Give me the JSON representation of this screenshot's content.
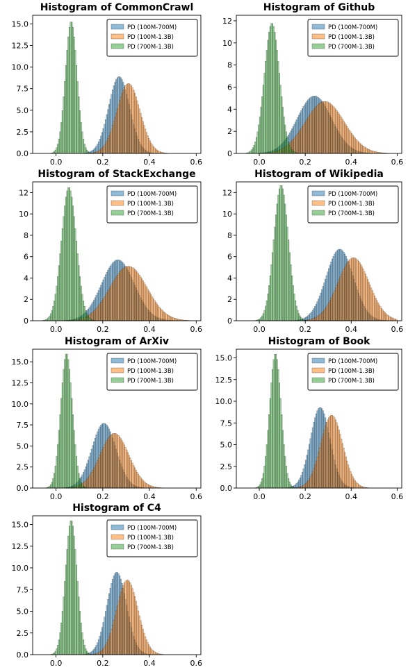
{
  "chart_data": [
    {
      "type": "histogram",
      "title": "Histogram of CommonCrawl",
      "xlim": [
        -0.1,
        0.62
      ],
      "ylim": [
        0,
        16
      ],
      "xticks": [
        "0.0",
        "0.2",
        "0.4",
        "0.6"
      ],
      "yticks": [
        "0.0",
        "2.5",
        "5.0",
        "7.5",
        "10.0",
        "12.5",
        "15.0"
      ],
      "grid": false,
      "legend": "top-right",
      "series": [
        {
          "name": "PD (100M-700M)",
          "peak_x": 0.27,
          "peak_density": 8.9,
          "spread": 0.045
        },
        {
          "name": "PD (100M-1.3B)",
          "peak_x": 0.31,
          "peak_density": 8.1,
          "spread": 0.05
        },
        {
          "name": "PD (700M-1.3B)",
          "peak_x": 0.065,
          "peak_density": 15.3,
          "spread": 0.025
        }
      ]
    },
    {
      "type": "histogram",
      "title": "Histogram of Github",
      "xlim": [
        -0.1,
        0.62
      ],
      "ylim": [
        0,
        12.5
      ],
      "xticks": [
        "0.0",
        "0.2",
        "0.4",
        "0.6"
      ],
      "yticks": [
        "0",
        "2",
        "4",
        "6",
        "8",
        "10",
        "12"
      ],
      "grid": false,
      "legend": "top-right",
      "series": [
        {
          "name": "PD (100M-700M)",
          "peak_x": 0.24,
          "peak_density": 5.2,
          "spread": 0.075
        },
        {
          "name": "PD (100M-1.3B)",
          "peak_x": 0.285,
          "peak_density": 4.7,
          "spread": 0.085
        },
        {
          "name": "PD (700M-1.3B)",
          "peak_x": 0.055,
          "peak_density": 11.8,
          "spread": 0.033
        }
      ]
    },
    {
      "type": "histogram",
      "title": "Histogram of StackExchange",
      "xlim": [
        -0.1,
        0.62
      ],
      "ylim": [
        0,
        13
      ],
      "xticks": [
        "0.0",
        "0.2",
        "0.4",
        "0.6"
      ],
      "yticks": [
        "0",
        "2",
        "4",
        "6",
        "8",
        "10",
        "12"
      ],
      "grid": false,
      "legend": "top-right",
      "series": [
        {
          "name": "PD (100M-700M)",
          "peak_x": 0.265,
          "peak_density": 5.7,
          "spread": 0.07
        },
        {
          "name": "PD (100M-1.3B)",
          "peak_x": 0.31,
          "peak_density": 5.1,
          "spread": 0.08
        },
        {
          "name": "PD (700M-1.3B)",
          "peak_x": 0.055,
          "peak_density": 12.5,
          "spread": 0.032
        }
      ]
    },
    {
      "type": "histogram",
      "title": "Histogram of Wikipedia",
      "xlim": [
        -0.1,
        0.62
      ],
      "ylim": [
        0,
        13
      ],
      "xticks": [
        "0.0",
        "0.2",
        "0.4",
        "0.6"
      ],
      "yticks": [
        "0",
        "2",
        "4",
        "6",
        "8",
        "10",
        "12"
      ],
      "grid": false,
      "legend": "top-right",
      "series": [
        {
          "name": "PD (100M-700M)",
          "peak_x": 0.35,
          "peak_density": 6.7,
          "spread": 0.06
        },
        {
          "name": "PD (100M-1.3B)",
          "peak_x": 0.41,
          "peak_density": 5.9,
          "spread": 0.068
        },
        {
          "name": "PD (700M-1.3B)",
          "peak_x": 0.095,
          "peak_density": 12.7,
          "spread": 0.032
        }
      ]
    },
    {
      "type": "histogram",
      "title": "Histogram of ArXiv",
      "xlim": [
        -0.1,
        0.62
      ],
      "ylim": [
        0,
        16.5
      ],
      "xticks": [
        "0.0",
        "0.2",
        "0.4",
        "0.6"
      ],
      "yticks": [
        "0.0",
        "2.5",
        "5.0",
        "7.5",
        "10.0",
        "12.5",
        "15.0"
      ],
      "grid": false,
      "legend": "top-right",
      "series": [
        {
          "name": "PD (100M-700M)",
          "peak_x": 0.205,
          "peak_density": 7.7,
          "spread": 0.052
        },
        {
          "name": "PD (100M-1.3B)",
          "peak_x": 0.25,
          "peak_density": 6.5,
          "spread": 0.062
        },
        {
          "name": "PD (700M-1.3B)",
          "peak_x": 0.045,
          "peak_density": 16.0,
          "spread": 0.025
        }
      ]
    },
    {
      "type": "histogram",
      "title": "Histogram of Book",
      "xlim": [
        -0.1,
        0.62
      ],
      "ylim": [
        0,
        16
      ],
      "xticks": [
        "0.0",
        "0.2",
        "0.4",
        "0.6"
      ],
      "yticks": [
        "0.0",
        "2.5",
        "5.0",
        "7.5",
        "10.0",
        "12.5",
        "15.0"
      ],
      "grid": false,
      "legend": "top-right",
      "series": [
        {
          "name": "PD (100M-700M)",
          "peak_x": 0.265,
          "peak_density": 9.3,
          "spread": 0.043
        },
        {
          "name": "PD (100M-1.3B)",
          "peak_x": 0.315,
          "peak_density": 8.4,
          "spread": 0.048
        },
        {
          "name": "PD (700M-1.3B)",
          "peak_x": 0.07,
          "peak_density": 15.5,
          "spread": 0.025
        }
      ]
    },
    {
      "type": "histogram",
      "title": "Histogram of C4",
      "xlim": [
        -0.1,
        0.62
      ],
      "ylim": [
        0,
        16
      ],
      "xticks": [
        "0.0",
        "0.2",
        "0.4",
        "0.6"
      ],
      "yticks": [
        "0.0",
        "2.5",
        "5.0",
        "7.5",
        "10.0",
        "12.5",
        "15.0"
      ],
      "grid": false,
      "legend": "top-right",
      "series": [
        {
          "name": "PD (100M-700M)",
          "peak_x": 0.26,
          "peak_density": 9.5,
          "spread": 0.042
        },
        {
          "name": "PD (100M-1.3B)",
          "peak_x": 0.305,
          "peak_density": 8.6,
          "spread": 0.046
        },
        {
          "name": "PD (700M-1.3B)",
          "peak_x": 0.065,
          "peak_density": 15.5,
          "spread": 0.025
        }
      ]
    }
  ],
  "colors": {
    "series": [
      "#1f77b4",
      "#ff7f0e",
      "#2ca02c"
    ],
    "bar_edge": "#000000",
    "axes": "#000000"
  }
}
